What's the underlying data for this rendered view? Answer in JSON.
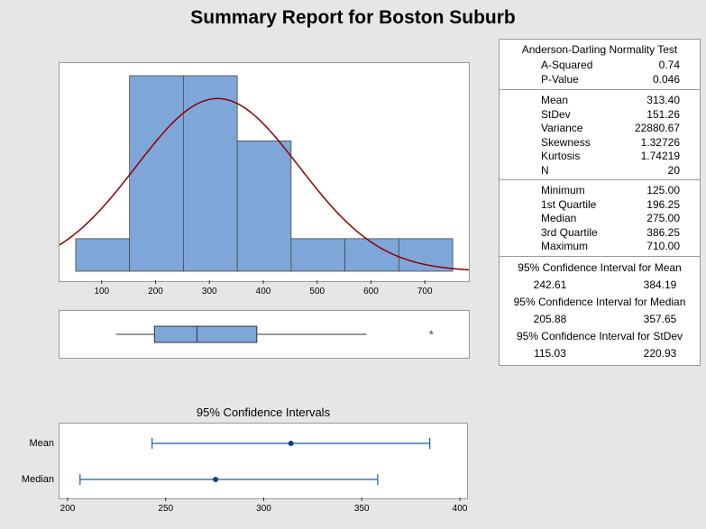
{
  "title": "Summary Report for Boston Suburb",
  "chart_data": {
    "type": "histogram",
    "histogram": {
      "bin_edges": [
        50,
        150,
        250,
        350,
        450,
        550,
        650,
        750
      ],
      "counts": [
        1,
        6,
        6,
        4,
        1,
        1,
        1
      ],
      "x_ticks": [
        "100",
        "200",
        "300",
        "400",
        "500",
        "600",
        "700"
      ],
      "xlim": [
        20,
        780
      ],
      "ylim": [
        0,
        6.5
      ],
      "fit": {
        "type": "normal",
        "mean": 313.4,
        "stdev": 151.26,
        "color": "#8b0000"
      },
      "bar_color": "#7ea6d8"
    },
    "boxplot": {
      "whisker_low": 125,
      "q1": 196.25,
      "median": 275.0,
      "q3": 386.25,
      "whisker_high": 590,
      "outliers": [
        710
      ]
    },
    "ci_plot": {
      "title": "95% Confidence Intervals",
      "rows": [
        {
          "label": "Mean",
          "estimate": 313.4,
          "lower": 242.61,
          "upper": 384.19
        },
        {
          "label": "Median",
          "estimate": 275.0,
          "lower": 205.88,
          "upper": 357.65
        }
      ],
      "x_ticks": [
        "200",
        "250",
        "300",
        "350",
        "400"
      ],
      "xlim": [
        200,
        400
      ],
      "color": "#1f5aa6"
    }
  },
  "stats": {
    "ad_title": "Anderson-Darling Normality Test",
    "ad": [
      {
        "label": "A-Squared",
        "value": "0.74"
      },
      {
        "label": "P-Value",
        "value": "0.046"
      }
    ],
    "moments": [
      {
        "label": "Mean",
        "value": "313.40"
      },
      {
        "label": "StDev",
        "value": "151.26"
      },
      {
        "label": "Variance",
        "value": "22880.67"
      },
      {
        "label": "Skewness",
        "value": "1.32726"
      },
      {
        "label": "Kurtosis",
        "value": "1.74219"
      },
      {
        "label": "N",
        "value": "20"
      }
    ],
    "quantiles": [
      {
        "label": "Minimum",
        "value": "125.00"
      },
      {
        "label": "1st Quartile",
        "value": "196.25"
      },
      {
        "label": "Median",
        "value": "275.00"
      },
      {
        "label": "3rd Quartile",
        "value": "386.25"
      },
      {
        "label": "Maximum",
        "value": "710.00"
      }
    ],
    "ci": [
      {
        "label": "95% Confidence Interval for Mean",
        "lower": "242.61",
        "upper": "384.19"
      },
      {
        "label": "95% Confidence Interval for Median",
        "lower": "205.88",
        "upper": "357.65"
      },
      {
        "label": "95% Confidence Interval for StDev",
        "lower": "115.03",
        "upper": "220.93"
      }
    ]
  }
}
